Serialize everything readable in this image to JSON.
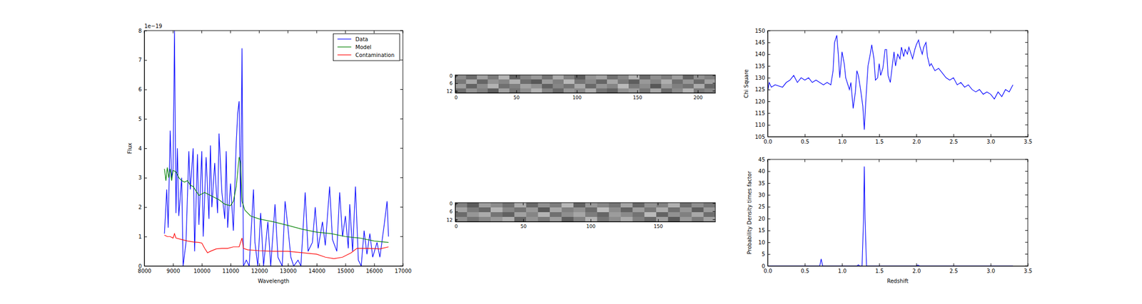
{
  "chart_data": [
    {
      "type": "line",
      "x_label": "Wavelength",
      "y_label": "Flux",
      "y_offset_text": "1e−19",
      "xlim": [
        8000,
        17000
      ],
      "xticks": [
        8000,
        9000,
        10000,
        11000,
        12000,
        13000,
        14000,
        15000,
        16000,
        17000
      ],
      "ylim": [
        0,
        8
      ],
      "yticks": [
        0,
        1,
        2,
        3,
        4,
        5,
        6,
        7,
        8
      ],
      "legend": "upper right",
      "series": [
        {
          "name": "Data",
          "color": "#0000ff",
          "x": [
            8700,
            8780,
            8830,
            8900,
            8950,
            9000,
            9050,
            9100,
            9150,
            9200,
            9300,
            9350,
            9450,
            9550,
            9600,
            9700,
            9750,
            9850,
            9900,
            10000,
            10050,
            10150,
            10250,
            10300,
            10350,
            10450,
            10550,
            10600,
            10700,
            10800,
            10850,
            10900,
            11000,
            11100,
            11200,
            11250,
            11300,
            11350,
            11400,
            11450,
            11550,
            11650,
            11800,
            11850,
            11950,
            12050,
            12150,
            12300,
            12400,
            12550,
            12650,
            12800,
            12900,
            13000,
            13100,
            13200,
            13350,
            13450,
            13600,
            13700,
            13850,
            13950,
            14050,
            14200,
            14300,
            14450,
            14550,
            14700,
            14800,
            14900,
            15000,
            15100,
            15150,
            15250,
            15350,
            15450,
            15550,
            15650,
            15750,
            15850,
            15950,
            16100,
            16200,
            16350,
            16450,
            16500
          ],
          "values": [
            1.1,
            2.6,
            1.3,
            4.6,
            3.0,
            3.3,
            8.0,
            1.8,
            4.0,
            1.7,
            3.0,
            0,
            0.8,
            3.9,
            2.6,
            4.0,
            0.5,
            3.8,
            1.4,
            3.9,
            1.0,
            3.7,
            1.6,
            4.1,
            2.0,
            3.5,
            1.8,
            4.5,
            2.5,
            1.6,
            3.9,
            1.3,
            2.8,
            1.2,
            4.2,
            5.2,
            5.6,
            2.0,
            7.4,
            0,
            0.2,
            0,
            2.6,
            0.8,
            0,
            1.8,
            0,
            1.5,
            0,
            2.1,
            0.3,
            0,
            2.2,
            1.3,
            0.3,
            0,
            0.2,
            0,
            2.5,
            0.5,
            0.8,
            2.0,
            0.6,
            1.5,
            0.7,
            2.7,
            0.9,
            0.5,
            2.5,
            1.0,
            1.7,
            0.6,
            2.1,
            0.5,
            2.7,
            0.2,
            0,
            1.2,
            0.4,
            1.1,
            0.3,
            0.8,
            0.3,
            1.4,
            2.2,
            1.0
          ]
        },
        {
          "name": "Model",
          "color": "#008000",
          "x": [
            8700,
            8750,
            8800,
            8850,
            8900,
            8950,
            9000,
            9100,
            9200,
            9300,
            9400,
            9500,
            9600,
            9700,
            9800,
            9900,
            10000,
            10100,
            10200,
            10400,
            10600,
            10800,
            11000,
            11100,
            11200,
            11300,
            11350,
            11400,
            11500,
            11700,
            12000,
            12500,
            13000,
            13500,
            14000,
            14500,
            15000,
            15500,
            16000,
            16500
          ],
          "values": [
            3.3,
            2.9,
            3.35,
            3.0,
            3.3,
            2.9,
            3.25,
            3.2,
            3.0,
            2.9,
            2.85,
            2.9,
            2.75,
            2.7,
            2.55,
            2.4,
            2.45,
            2.5,
            2.45,
            2.35,
            2.25,
            2.1,
            2.05,
            2.2,
            2.7,
            3.7,
            3.5,
            2.2,
            1.9,
            1.7,
            1.6,
            1.5,
            1.38,
            1.25,
            1.15,
            1.1,
            1.0,
            0.95,
            0.85,
            0.8
          ]
        },
        {
          "name": "Contamination",
          "color": "#ff0000",
          "x": [
            8700,
            8800,
            8900,
            9000,
            9050,
            9100,
            9300,
            9500,
            9700,
            9900,
            10000,
            10100,
            10200,
            10300,
            10500,
            10700,
            10900,
            11100,
            11300,
            11400,
            11450,
            11600,
            12000,
            12500,
            13000,
            13500,
            14000,
            14300,
            14600,
            14900,
            15200,
            15400,
            15800,
            16200,
            16500
          ],
          "values": [
            1.05,
            1.0,
            1.0,
            0.95,
            1.1,
            0.95,
            0.9,
            0.85,
            0.82,
            0.8,
            0.78,
            0.6,
            0.45,
            0.5,
            0.58,
            0.6,
            0.6,
            0.65,
            0.65,
            0.95,
            0.6,
            0.55,
            0.52,
            0.5,
            0.5,
            0.45,
            0.4,
            0.3,
            0.25,
            0.3,
            0.45,
            0.6,
            0.6,
            0.58,
            0.65
          ]
        }
      ]
    },
    {
      "type": "heatmap",
      "xlim": [
        -0.5,
        214.5
      ],
      "xticks": [
        0,
        50,
        100,
        150,
        200
      ],
      "ylim": [
        13.5,
        -0.5
      ],
      "yticks": [
        0,
        6,
        12
      ],
      "color_range": [
        0,
        1
      ],
      "cells": [
        [
          0.55,
          0.42,
          0.63,
          0.48,
          0.71,
          0.38,
          0.52,
          0.6,
          0.45,
          0.67,
          0.5,
          0.36,
          0.58,
          0.64,
          0.44,
          0.53,
          0.7,
          0.41,
          0.56,
          0.49,
          0.62,
          0.39,
          0.57,
          0.5
        ],
        [
          0.47,
          0.66,
          0.4,
          0.58,
          0.52,
          0.69,
          0.43,
          0.35,
          0.61,
          0.5,
          0.72,
          0.46,
          0.54,
          0.4,
          0.65,
          0.48,
          0.37,
          0.6,
          0.51,
          0.68,
          0.44,
          0.59,
          0.42,
          0.63
        ],
        [
          0.62,
          0.39,
          0.55,
          0.7,
          0.44,
          0.5,
          0.64,
          0.57,
          0.38,
          0.53,
          0.46,
          0.66,
          0.41,
          0.59,
          0.52,
          0.73,
          0.48,
          0.55,
          0.34,
          0.6,
          0.5,
          0.45,
          0.67,
          0.4
        ],
        [
          0.43,
          0.58,
          0.5,
          0.37,
          0.63,
          0.46,
          0.56,
          0.7,
          0.52,
          0.41,
          0.6,
          0.54,
          0.68,
          0.45,
          0.39,
          0.57,
          0.62,
          0.47,
          0.66,
          0.42,
          0.55,
          0.71,
          0.48,
          0.53
        ]
      ]
    },
    {
      "type": "heatmap",
      "xlim": [
        -0.5,
        192.5
      ],
      "xticks": [
        0,
        50,
        100,
        150
      ],
      "ylim": [
        13.5,
        -0.5
      ],
      "yticks": [
        0,
        6,
        12
      ],
      "color_range": [
        0,
        1
      ],
      "cells": [
        [
          0.5,
          0.36,
          0.62,
          0.55,
          0.44,
          0.68,
          0.41,
          0.57,
          0.49,
          0.72,
          0.38,
          0.6,
          0.53,
          0.46,
          0.65,
          0.4,
          0.58,
          0.51,
          0.69,
          0.43,
          0.56,
          0.47
        ],
        [
          0.64,
          0.48,
          0.4,
          0.71,
          0.53,
          0.45,
          0.6,
          0.35,
          0.66,
          0.5,
          0.57,
          0.42,
          0.74,
          0.55,
          0.39,
          0.62,
          0.47,
          0.68,
          0.44,
          0.59,
          0.37,
          0.61
        ],
        [
          0.42,
          0.59,
          0.67,
          0.46,
          0.38,
          0.63,
          0.52,
          0.7,
          0.44,
          0.56,
          0.65,
          0.49,
          0.4,
          0.61,
          0.54,
          0.45,
          0.73,
          0.39,
          0.57,
          0.5,
          0.66,
          0.43
        ],
        [
          0.57,
          0.45,
          0.53,
          0.6,
          0.69,
          0.4,
          0.58,
          0.48,
          0.62,
          0.37,
          0.51,
          0.7,
          0.46,
          0.55,
          0.67,
          0.5,
          0.41,
          0.63,
          0.35,
          0.6,
          0.48,
          0.64
        ]
      ]
    },
    {
      "type": "line",
      "y_label": "Chi Square",
      "color": "#0000ff",
      "xlim": [
        0,
        3.5
      ],
      "xticks": [
        {
          "value": 0,
          "label": "0.0"
        },
        {
          "value": 0.5,
          "label": "0.5"
        },
        {
          "value": 1,
          "label": "1.0"
        },
        {
          "value": 1.5,
          "label": "1.5"
        },
        {
          "value": 2,
          "label": "2.0"
        },
        {
          "value": 2.5,
          "label": "2.5"
        },
        {
          "value": 3,
          "label": "3.0"
        },
        {
          "value": 3.5,
          "label": "3.5"
        }
      ],
      "ylim": [
        105,
        150
      ],
      "yticks": [
        105,
        110,
        115,
        120,
        125,
        130,
        135,
        140,
        145,
        150
      ],
      "x": [
        0,
        0.02,
        0.05,
        0.1,
        0.2,
        0.25,
        0.3,
        0.35,
        0.4,
        0.45,
        0.5,
        0.55,
        0.6,
        0.65,
        0.7,
        0.75,
        0.8,
        0.85,
        0.88,
        0.9,
        0.93,
        0.95,
        0.97,
        1.0,
        1.03,
        1.05,
        1.08,
        1.1,
        1.12,
        1.15,
        1.18,
        1.2,
        1.22,
        1.25,
        1.28,
        1.3,
        1.32,
        1.35,
        1.38,
        1.4,
        1.43,
        1.45,
        1.48,
        1.5,
        1.52,
        1.55,
        1.58,
        1.6,
        1.62,
        1.65,
        1.68,
        1.7,
        1.72,
        1.75,
        1.78,
        1.8,
        1.83,
        1.85,
        1.88,
        1.9,
        1.93,
        1.95,
        1.98,
        2.0,
        2.03,
        2.05,
        2.08,
        2.1,
        2.13,
        2.15,
        2.18,
        2.2,
        2.25,
        2.3,
        2.35,
        2.4,
        2.45,
        2.5,
        2.55,
        2.6,
        2.65,
        2.7,
        2.75,
        2.8,
        2.85,
        2.9,
        2.95,
        3.0,
        3.05,
        3.1,
        3.15,
        3.2,
        3.25,
        3.3
      ],
      "values": [
        124,
        128,
        126,
        127,
        126,
        128,
        129,
        131,
        128,
        130,
        129,
        130,
        128,
        129,
        128,
        127,
        128,
        127,
        133,
        145,
        148,
        140,
        130,
        141,
        136,
        130,
        127,
        125,
        128,
        117,
        124,
        133,
        131,
        125,
        118,
        108,
        120,
        135,
        140,
        144,
        138,
        129,
        130,
        136,
        131,
        134,
        142,
        142,
        131,
        128,
        136,
        141,
        135,
        140,
        138,
        143,
        139,
        142,
        140,
        143,
        140,
        138,
        142,
        144,
        146,
        143,
        140,
        143,
        145,
        139,
        135,
        136,
        133,
        134,
        132,
        130,
        129,
        130,
        127,
        128,
        126,
        127,
        125,
        124,
        125,
        123,
        124,
        123,
        121,
        124,
        122,
        125,
        124,
        127
      ]
    },
    {
      "type": "line",
      "x_label": "Redshift",
      "y_label": "Probability Density times factor",
      "color": "#0000ff",
      "xlim": [
        0,
        3.5
      ],
      "xticks": [
        {
          "value": 0,
          "label": "0.0"
        },
        {
          "value": 0.5,
          "label": "0.5"
        },
        {
          "value": 1,
          "label": "1.0"
        },
        {
          "value": 1.5,
          "label": "1.5"
        },
        {
          "value": 2,
          "label": "2.0"
        },
        {
          "value": 2.5,
          "label": "2.5"
        },
        {
          "value": 3,
          "label": "3.0"
        },
        {
          "value": 3.5,
          "label": "3.5"
        }
      ],
      "ylim": [
        0,
        45
      ],
      "yticks": [
        0,
        5,
        10,
        15,
        20,
        25,
        30,
        35,
        40,
        45
      ],
      "x": [
        0,
        0.7,
        0.72,
        0.74,
        1.2,
        1.22,
        1.24,
        1.27,
        1.29,
        1.3,
        1.31,
        1.33,
        2.0,
        2.02,
        2.05,
        3.3
      ],
      "values": [
        0,
        0,
        3,
        0,
        0,
        0.5,
        0,
        0,
        20,
        42,
        20,
        0,
        0,
        0.4,
        0,
        0
      ]
    }
  ]
}
